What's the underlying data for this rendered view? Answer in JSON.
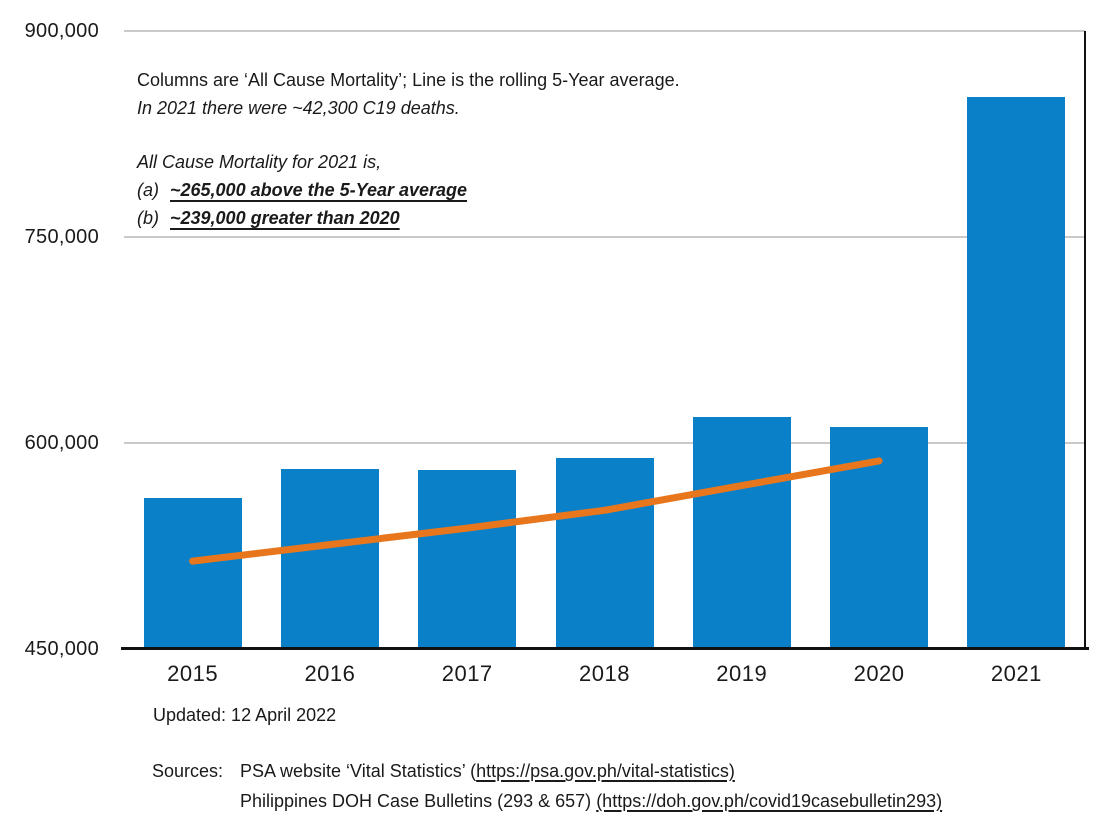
{
  "annotation": {
    "line1": "Columns are ‘All Cause Mortality’; Line is the rolling 5-Year average.",
    "line2": "In 2021 there were ~42,300 C19 deaths.",
    "line3": "All Cause Mortality for 2021 is,",
    "item_a_label": "(a)",
    "item_a_text": "~265,000 above the 5-Year average",
    "item_b_label": "(b)",
    "item_b_text": "~239,000 greater than 2020"
  },
  "footer": {
    "updated": "Updated: 12 April 2022",
    "sources_label": "Sources:",
    "source1_prefix": "PSA website ‘Vital Statistics’ (",
    "source1_link": "https://psa.gov.ph/vital-statistics)",
    "source2_prefix": "Philippines DOH Case Bulletins (293 & 657)  ",
    "source2_link": "(https://doh.gov.ph/covid19casebulletin293)"
  },
  "colors": {
    "bar_blue": "#0A80C8",
    "line_orange": "#E8761D",
    "gridline_gray": "#C9C9C9",
    "axis_black": "#111111",
    "text": "#1A1A1A"
  },
  "chart_data": {
    "type": "bar",
    "categories": [
      "2015",
      "2016",
      "2017",
      "2018",
      "2019",
      "2020",
      "2021"
    ],
    "series": [
      {
        "name": "All Cause Mortality",
        "type": "bar",
        "color": "#0A80C8",
        "values": [
          560000,
          581000,
          580000,
          589000,
          619000,
          612000,
          852000
        ]
      },
      {
        "name": "Rolling 5-Year average",
        "type": "line",
        "color": "#E8761D",
        "values": [
          514000,
          526000,
          538000,
          551000,
          569000,
          587000,
          null
        ]
      }
    ],
    "ylim": [
      450000,
      900000
    ],
    "y_ticks": [
      450000,
      600000,
      750000,
      900000
    ],
    "y_tick_labels": [
      "450,000",
      "600,000",
      "750,000",
      "900,000"
    ],
    "xlabel": "",
    "ylabel": "",
    "grid": true,
    "legend": "none"
  }
}
